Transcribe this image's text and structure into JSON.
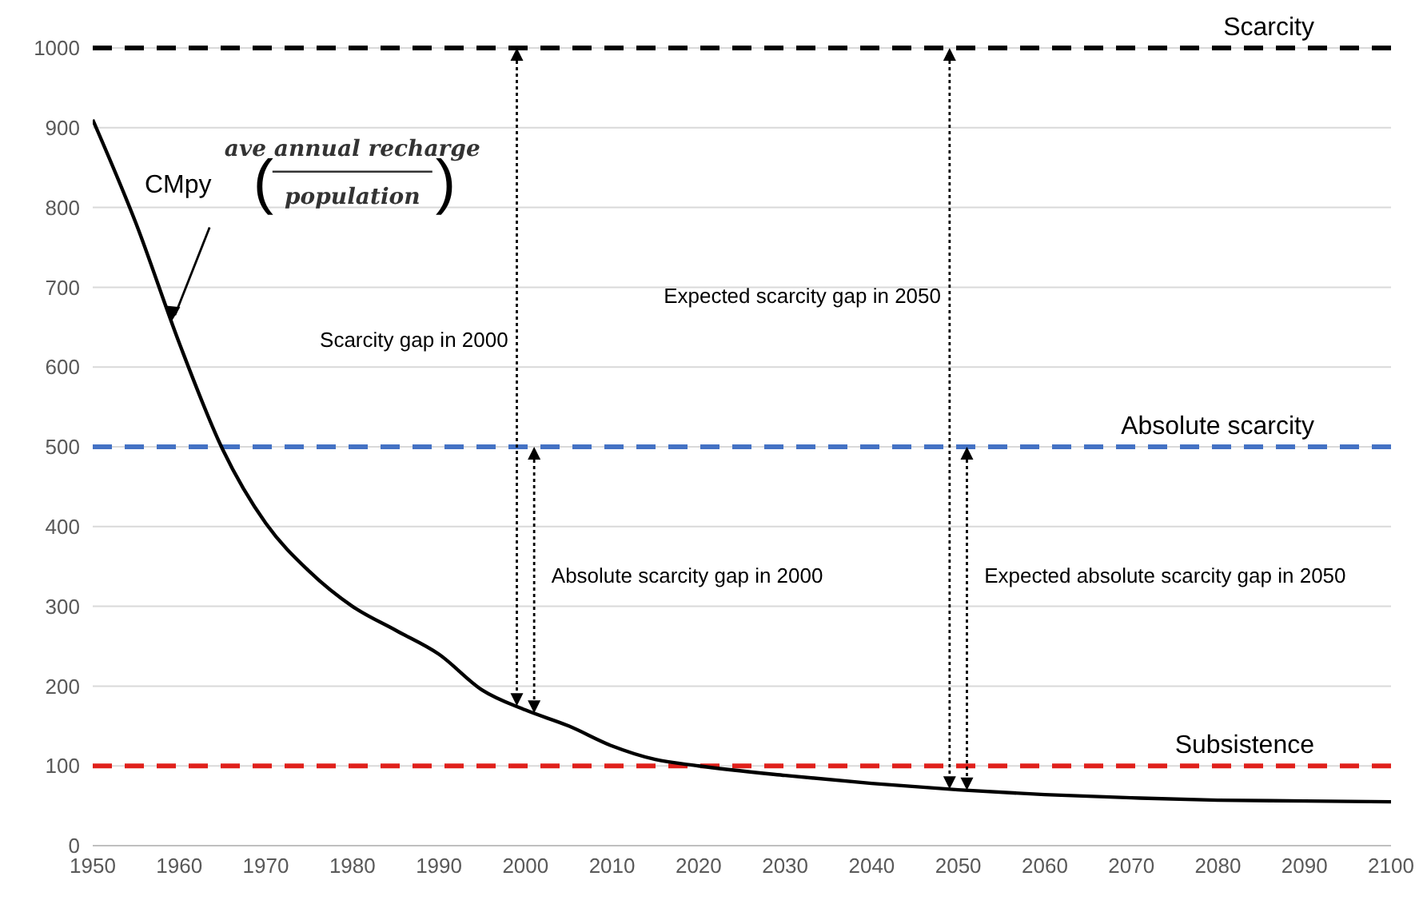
{
  "chart_data": {
    "type": "line",
    "x": [
      1950,
      1955,
      1960,
      1965,
      1970,
      1975,
      1980,
      1985,
      1990,
      1995,
      2000,
      2005,
      2010,
      2015,
      2020,
      2030,
      2040,
      2050,
      2060,
      2070,
      2080,
      2090,
      2100
    ],
    "series": [
      {
        "color": "#000000",
        "values": [
          910,
          780,
          630,
          497,
          404,
          344,
          300,
          270,
          240,
          195,
          170,
          150,
          125,
          108,
          100,
          88,
          78,
          70,
          64,
          60,
          57,
          56,
          55
        ]
      }
    ],
    "xlim": [
      1950,
      2100
    ],
    "xticks": [
      1950,
      1960,
      1970,
      1980,
      1990,
      2000,
      2010,
      2020,
      2030,
      2040,
      2050,
      2060,
      2070,
      2080,
      2090,
      2100
    ],
    "ylim": [
      0,
      1000
    ],
    "yticks": [
      0,
      100,
      200,
      300,
      400,
      500,
      600,
      700,
      800,
      900,
      1000
    ],
    "grid": "y",
    "legend": false,
    "marker": "none",
    "line_style": "solid",
    "ref_lines": [
      {
        "axis": "y",
        "value": 1000,
        "label": "Scarcity",
        "color": "#000000",
        "line_style": "dashed"
      },
      {
        "axis": "y",
        "value": 500,
        "label": "Absolute scarcity",
        "color": "#4472c4",
        "line_style": "dashed"
      },
      {
        "axis": "y",
        "value": 100,
        "label": "Subsistence",
        "color": "#e0201b",
        "line_style": "dashed"
      }
    ],
    "annotations": [
      "Scarcity gap in 2000",
      "Absolute scarcity gap in 2000",
      "Expected scarcity gap in 2050",
      "Expected absolute scarcity gap in 2050",
      {
        "text": "CMpy",
        "x": 1959,
        "y": 655
      },
      "(",
      "ave annual recharge",
      "population",
      ")"
    ]
  }
}
